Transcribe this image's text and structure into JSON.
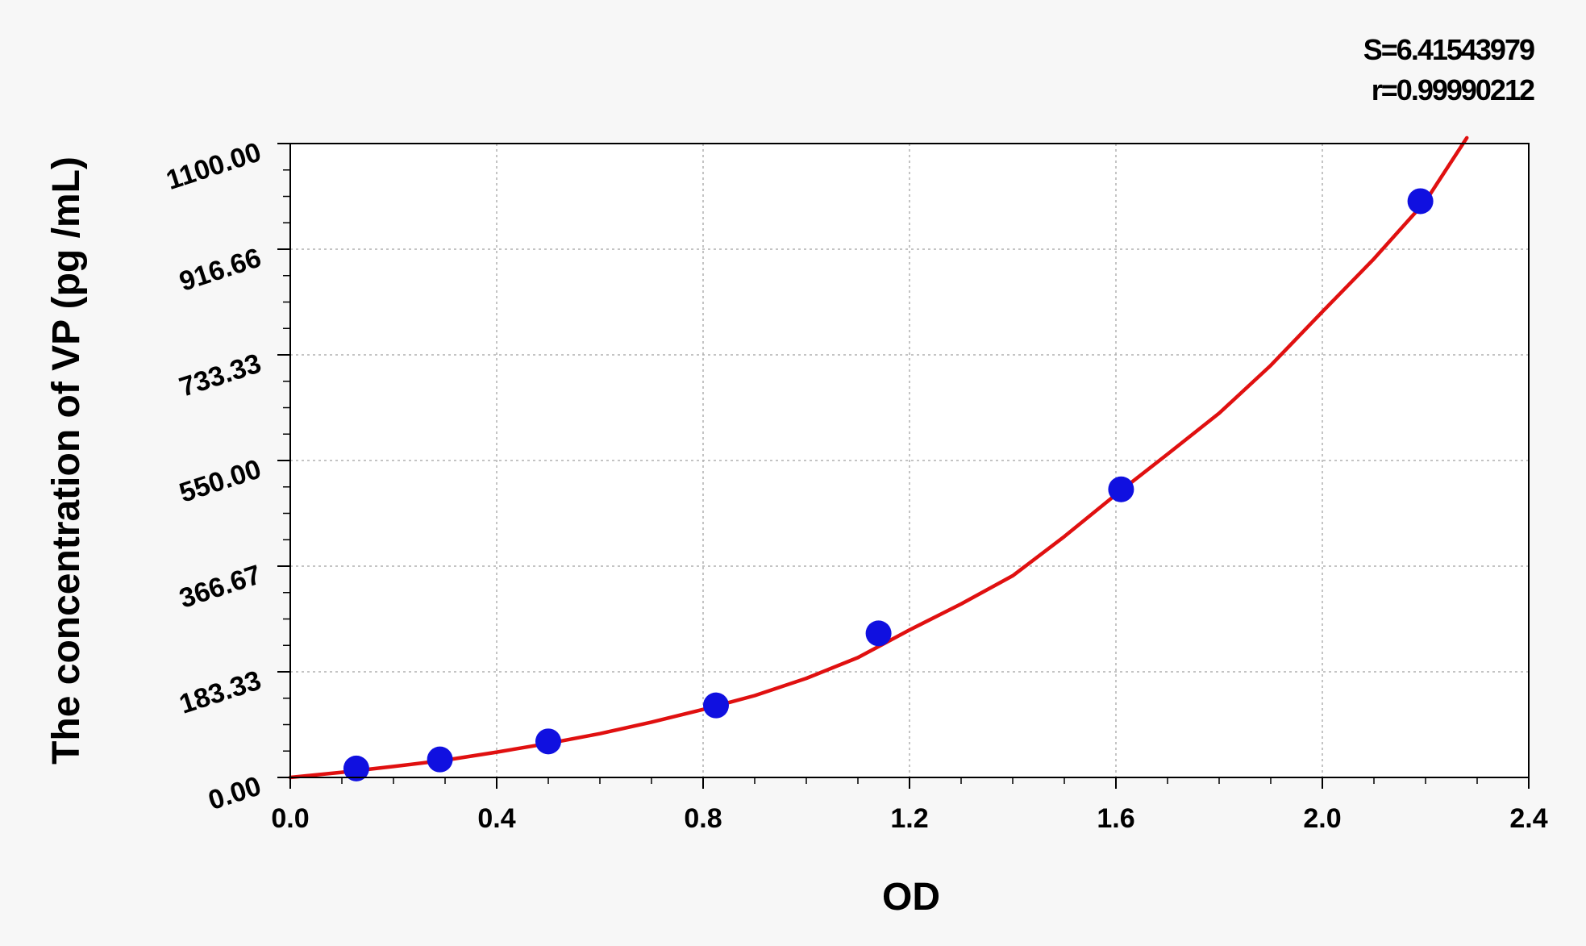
{
  "chart_data": {
    "type": "scatter",
    "xlabel": "OD",
    "ylabel": "The concentration of VP (pg /mL)",
    "xlim": [
      0.0,
      2.4
    ],
    "ylim": [
      0.0,
      1100.0
    ],
    "x_ticks": [
      "0.0",
      "0.4",
      "0.8",
      "1.2",
      "1.6",
      "2.0",
      "2.4"
    ],
    "x_tick_values": [
      0.0,
      0.4,
      0.8,
      1.2,
      1.6,
      2.0,
      2.4
    ],
    "y_ticks": [
      "0.00",
      "183.33",
      "366.67",
      "550.00",
      "733.33",
      "916.66",
      "1100.00"
    ],
    "y_tick_values": [
      0.0,
      183.33,
      366.67,
      550.0,
      733.33,
      916.66,
      1100.0
    ],
    "grid": true,
    "stats": {
      "s": "S=6.41543979",
      "r": "r=0.99990212"
    },
    "series": [
      {
        "type": "scatter",
        "color": "#1010e0",
        "points": [
          {
            "x": 0.128,
            "y": 15.6
          },
          {
            "x": 0.29,
            "y": 31.25
          },
          {
            "x": 0.5,
            "y": 62.5
          },
          {
            "x": 0.825,
            "y": 125
          },
          {
            "x": 1.14,
            "y": 250
          },
          {
            "x": 1.61,
            "y": 500
          },
          {
            "x": 2.19,
            "y": 1000
          }
        ]
      },
      {
        "type": "line",
        "color": "#e01010",
        "points": [
          {
            "x": 0.0,
            "y": 0
          },
          {
            "x": 0.1,
            "y": 9
          },
          {
            "x": 0.2,
            "y": 19
          },
          {
            "x": 0.3,
            "y": 30
          },
          {
            "x": 0.4,
            "y": 44
          },
          {
            "x": 0.5,
            "y": 59
          },
          {
            "x": 0.6,
            "y": 76
          },
          {
            "x": 0.7,
            "y": 96
          },
          {
            "x": 0.8,
            "y": 118
          },
          {
            "x": 0.9,
            "y": 142
          },
          {
            "x": 1.0,
            "y": 172
          },
          {
            "x": 1.1,
            "y": 208
          },
          {
            "x": 1.2,
            "y": 256
          },
          {
            "x": 1.3,
            "y": 301
          },
          {
            "x": 1.4,
            "y": 350
          },
          {
            "x": 1.5,
            "y": 418
          },
          {
            "x": 1.6,
            "y": 491
          },
          {
            "x": 1.7,
            "y": 561
          },
          {
            "x": 1.8,
            "y": 632
          },
          {
            "x": 1.9,
            "y": 715
          },
          {
            "x": 2.0,
            "y": 808
          },
          {
            "x": 2.1,
            "y": 900
          },
          {
            "x": 2.2,
            "y": 1000
          },
          {
            "x": 2.28,
            "y": 1110
          }
        ]
      }
    ]
  }
}
